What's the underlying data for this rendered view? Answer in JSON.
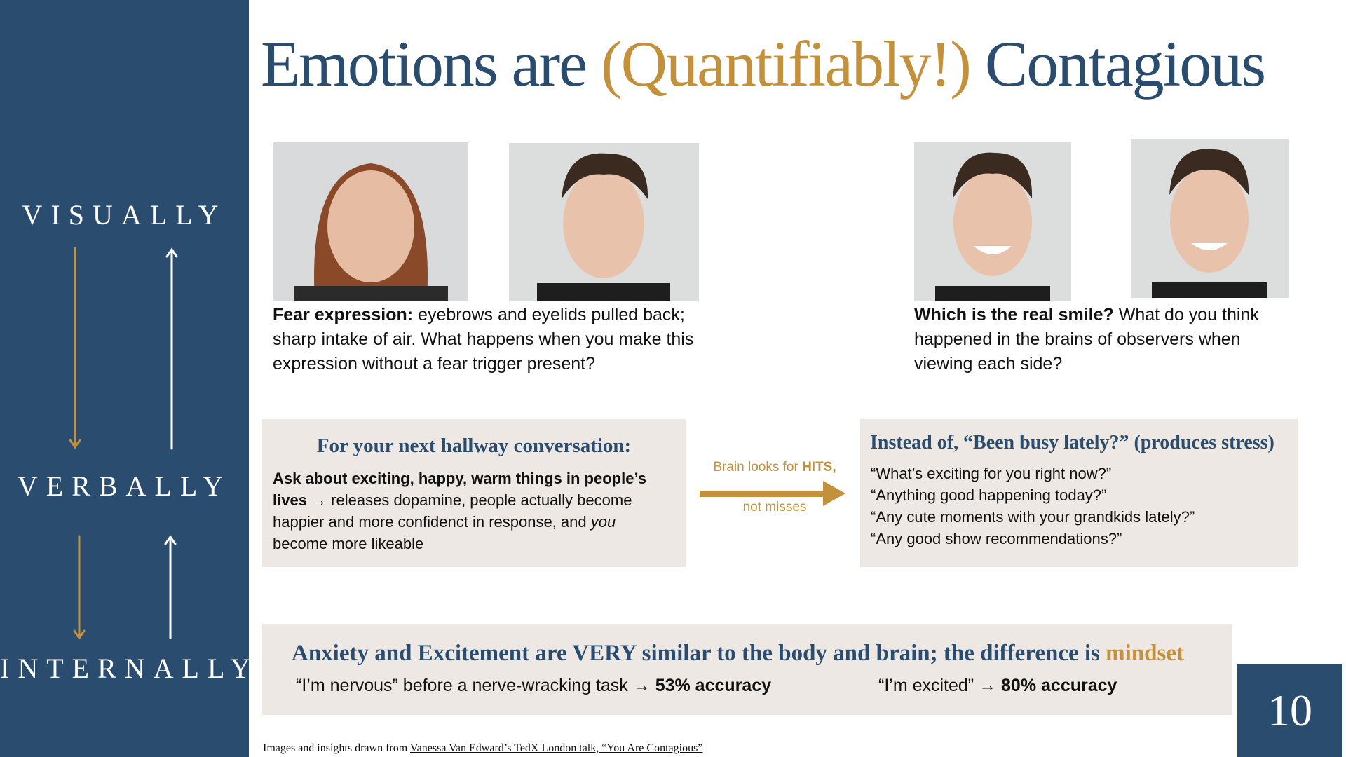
{
  "sidebar": {
    "labels": [
      "VISUALLY",
      "VERBALLY",
      "INTERNALLY"
    ]
  },
  "title": {
    "before": "Emotions are ",
    "highlight": "(Quantifiably!)",
    "after": " Contagious"
  },
  "fear": {
    "bold": "Fear expression:",
    "text": " eyebrows and eyelids pulled back; sharp intake of air.  What happens when you make this expression without a fear trigger present?"
  },
  "smile": {
    "bold": "Which is the real smile?",
    "text": " What do you think happened in the brains of observers when viewing each side?"
  },
  "hallway": {
    "heading": "For your next hallway conversation:",
    "bold": "Ask about exciting, happy, warm things in people’s lives",
    "arrow": " → ",
    "text": "releases dopamine, people actually become happier and more confidenct in response, and ",
    "italic": "you",
    "end": " become more likeable"
  },
  "brain": {
    "before": "Brain looks for ",
    "bold": "HITS,",
    "after": "not misses"
  },
  "instead": {
    "heading": "Instead of, “Been busy lately?” (produces stress)",
    "questions": [
      "“What’s exciting for you right now?”",
      "“Anything good happening today?”",
      "“Any cute moments with your grandkids lately?”",
      "“Any good show recommendations?”"
    ]
  },
  "mindset": {
    "heading": "Anxiety and Excitement are VERY similar to the body and brain; the difference is ",
    "highlight": "mindset",
    "nervous": {
      "text": "“I’m nervous” before a nerve-wracking task → ",
      "bold": "53% accuracy"
    },
    "excited": {
      "text": "“I’m excited”  → ",
      "bold": "80% accuracy"
    }
  },
  "source": {
    "text": "Images and insights drawn from ",
    "link": "Vanessa Van Edward’s TedX London talk, “You Are Contagious”"
  },
  "page_number": "10"
}
